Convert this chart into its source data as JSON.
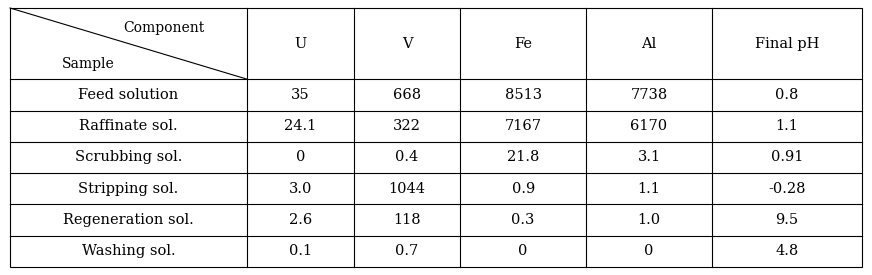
{
  "col_headers": [
    "U",
    "V",
    "Fe",
    "Al",
    "Final pH"
  ],
  "row_headers": [
    "Feed solution",
    "Raffinate sol.",
    "Scrubbing sol.",
    "Stripping sol.",
    "Regeneration sol.",
    "Washing sol."
  ],
  "table_data": [
    [
      "35",
      "668",
      "8513",
      "7738",
      "0.8"
    ],
    [
      "24.1",
      "322",
      "7167",
      "6170",
      "1.1"
    ],
    [
      "0",
      "0.4",
      "21.8",
      "3.1",
      "0.91"
    ],
    [
      "3.0",
      "1044",
      "0.9",
      "1.1",
      "-0.28"
    ],
    [
      "2.6",
      "118",
      "0.3",
      "1.0",
      "9.5"
    ],
    [
      "0.1",
      "0.7",
      "0",
      "0",
      "4.8"
    ]
  ],
  "background_color": "#ffffff",
  "border_color": "#000000",
  "text_color": "#000000",
  "font_size": 10.5,
  "diag_label_top": "Component",
  "diag_label_bottom": "Sample"
}
